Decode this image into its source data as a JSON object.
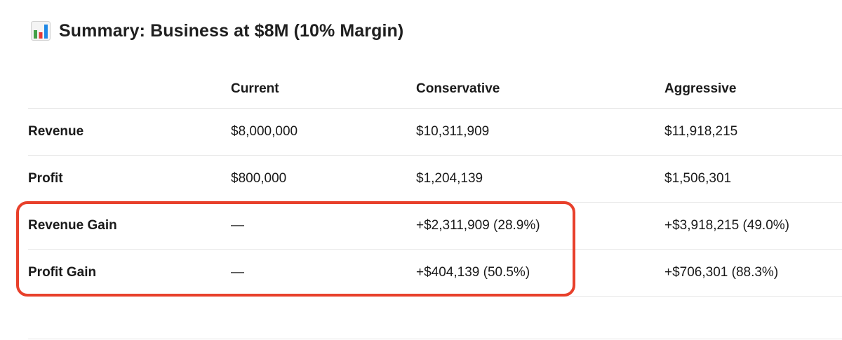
{
  "title": {
    "icon": "bar-chart-icon",
    "text": "Summary: Business at $8M (10% Margin)"
  },
  "table": {
    "columns": [
      "",
      "Current",
      "Conservative",
      "Aggressive"
    ],
    "rows": [
      {
        "label": "Revenue",
        "current": "$8,000,000",
        "conservative": "$10,311,909",
        "aggressive": "$11,918,215"
      },
      {
        "label": "Profit",
        "current": "$800,000",
        "conservative": "$1,204,139",
        "aggressive": "$1,506,301"
      },
      {
        "label": "Revenue Gain",
        "current": "—",
        "conservative": "+$2,311,909 (28.9%)",
        "aggressive": "+$3,918,215 (49.0%)"
      },
      {
        "label": "Profit Gain",
        "current": "—",
        "conservative": "+$404,139 (50.5%)",
        "aggressive": "+$706,301 (88.3%)"
      }
    ]
  },
  "highlight": {
    "color": "#e8402b",
    "rows": [
      "Revenue Gain",
      "Profit Gain"
    ]
  },
  "colors": {
    "icon_bar_green": "#43a047",
    "icon_bar_red": "#e53935",
    "icon_bar_blue": "#1e88e5"
  }
}
